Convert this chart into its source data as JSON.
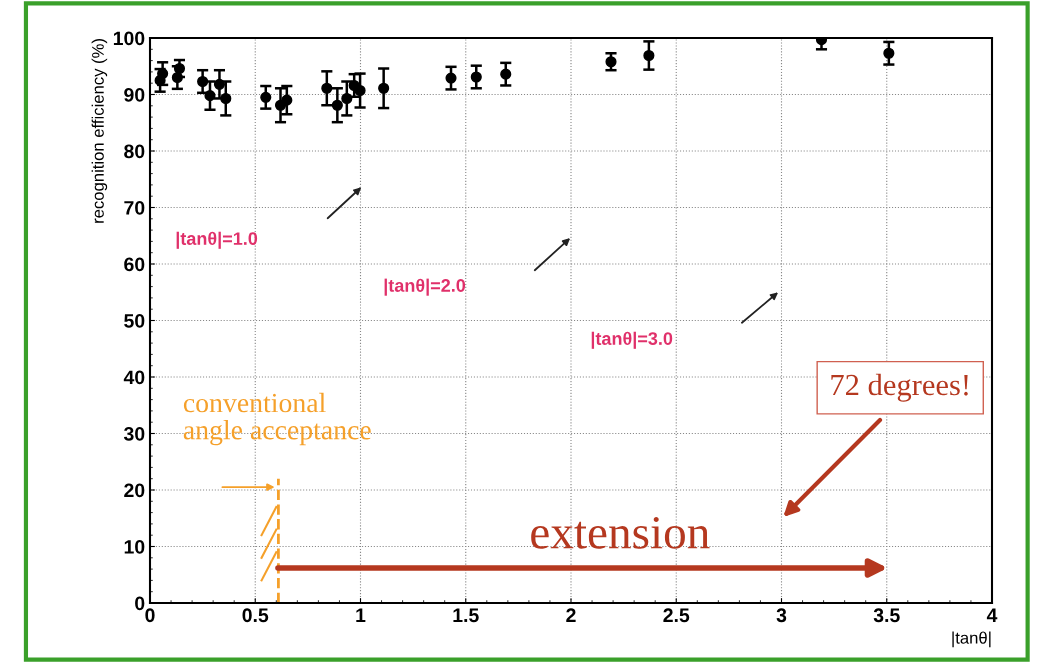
{
  "chart_data": {
    "type": "scatter",
    "xlabel": "|tanθ|",
    "ylabel": "recognition efficiency (%)",
    "x": [
      0.048,
      0.06,
      0.13,
      0.14,
      0.25,
      0.285,
      0.33,
      0.36,
      0.55,
      0.62,
      0.65,
      0.84,
      0.89,
      0.935,
      0.97,
      0.998,
      1.11,
      1.43,
      1.55,
      1.69,
      2.19,
      2.37,
      3.19,
      3.51
    ],
    "series": [
      {
        "color": "#000000",
        "values": [
          92.5,
          93.7,
          93,
          94.6,
          92.3,
          89.8,
          91.8,
          89.3,
          89.5,
          88.1,
          89,
          91.1,
          88.1,
          89.3,
          91.6,
          90.7,
          91.1,
          92.9,
          93.1,
          93.6,
          95.8,
          96.9,
          99.7,
          97.3
        ],
        "errors": [
          2,
          2,
          2,
          1.5,
          2,
          2.5,
          2.5,
          3,
          2,
          3,
          2.5,
          3,
          3,
          3,
          2,
          3,
          3.5,
          2,
          2,
          2,
          1.5,
          2.5,
          [
            98,
            100
          ],
          2
        ]
      }
    ],
    "xlim": [
      0,
      4
    ],
    "ylim": [
      0,
      100
    ],
    "xticks": [
      0,
      0.5,
      1,
      1.5,
      2,
      2.5,
      3,
      3.5,
      4
    ],
    "yticks": [
      0,
      10,
      20,
      30,
      40,
      50,
      60,
      70,
      80,
      90,
      100
    ],
    "grid": true,
    "marker": "circle",
    "ref_lines": [
      {
        "axis": "x",
        "value": 0.61,
        "label": null,
        "color": "#f5a02a",
        "line_style": "dashed"
      }
    ],
    "annotations": [
      "|tanθ|=1.0",
      "|tanθ|=2.0",
      "|tanθ|=3.0",
      "conventional\nangle acceptance",
      "72 degrees!",
      "extension"
    ]
  }
}
